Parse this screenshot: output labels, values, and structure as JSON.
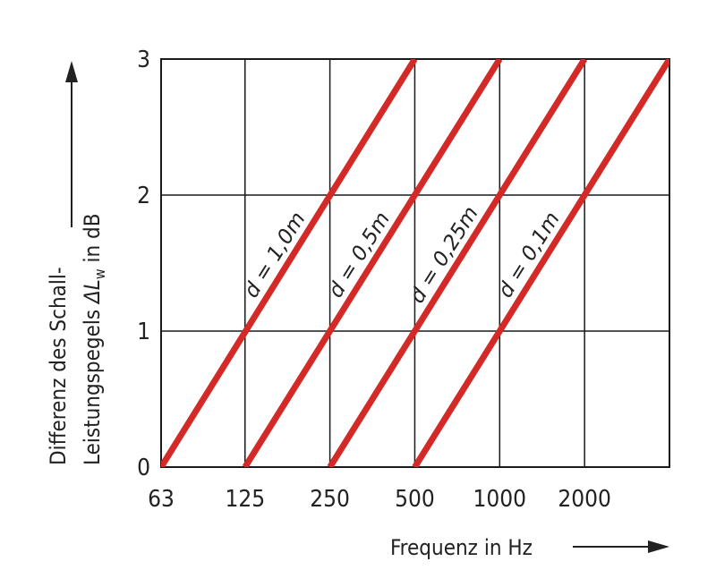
{
  "chart_data": {
    "type": "line",
    "xlabel": "Frequenz in Hz",
    "ylabel_line1": "Differenz des Schall-",
    "ylabel_line2_prefix": "Leistungspegels ",
    "ylabel_symbol": "ΔL",
    "ylabel_subscript": "w",
    "ylabel_unit": " in dB",
    "x_scale": "log2",
    "x_ticks": [
      63,
      125,
      250,
      500,
      1000,
      2000
    ],
    "x_tick_labels": [
      "63",
      "125",
      "250",
      "500",
      "1000",
      "2000"
    ],
    "xlim": [
      63,
      4000
    ],
    "y_ticks": [
      0,
      1,
      2,
      3
    ],
    "y_tick_labels": [
      "0",
      "1",
      "2",
      "3"
    ],
    "ylim": [
      0,
      3
    ],
    "grid": true,
    "line_color": "#d42a27",
    "series": [
      {
        "name": "d = 1,0m",
        "points": [
          [
            63,
            0
          ],
          [
            500,
            3
          ]
        ]
      },
      {
        "name": "d = 0,5m",
        "points": [
          [
            125,
            0
          ],
          [
            1000,
            3
          ]
        ]
      },
      {
        "name": "d = 0,25m",
        "points": [
          [
            250,
            0
          ],
          [
            2000,
            3
          ]
        ]
      },
      {
        "name": "d = 0,1m",
        "points": [
          [
            500,
            0
          ],
          [
            4000,
            3
          ]
        ]
      }
    ]
  }
}
